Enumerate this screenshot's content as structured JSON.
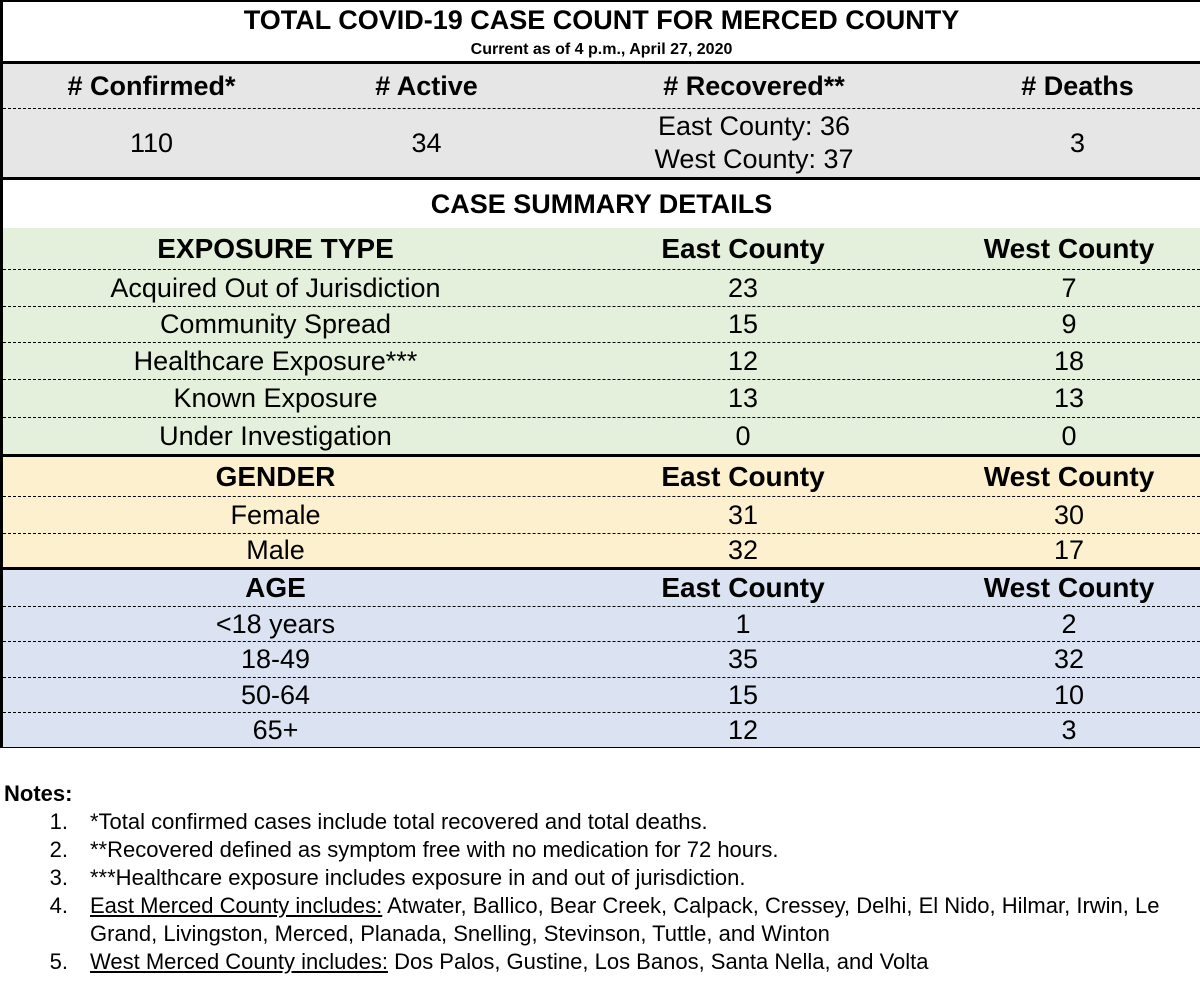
{
  "header": {
    "title": "TOTAL COVID-19 CASE COUNT FOR MERCED COUNTY",
    "subtitle": "Current as of 4 p.m., April 27, 2020"
  },
  "totals": {
    "labels": [
      "# Confirmed*",
      "# Active",
      "# Recovered**",
      "# Deaths"
    ],
    "confirmed": "110",
    "active": "34",
    "recovered_east": "East County: 36",
    "recovered_west": "West County: 37",
    "deaths": "3"
  },
  "summary_title": "CASE SUMMARY DETAILS",
  "sections": {
    "exposure": {
      "header": [
        "EXPOSURE TYPE",
        "East County",
        "West County"
      ],
      "rows": [
        [
          "Acquired Out of Jurisdiction",
          "23",
          "7"
        ],
        [
          "Community Spread",
          "15",
          "9"
        ],
        [
          "Healthcare Exposure***",
          "12",
          "18"
        ],
        [
          "Known Exposure",
          "13",
          "13"
        ],
        [
          "Under Investigation",
          "0",
          "0"
        ]
      ],
      "color": "#e4efdc"
    },
    "gender": {
      "header": [
        "GENDER",
        "East County",
        "West County"
      ],
      "rows": [
        [
          "Female",
          "31",
          "30"
        ],
        [
          "Male",
          "32",
          "17"
        ]
      ],
      "color": "#fdf0ce"
    },
    "age": {
      "header": [
        "AGE",
        "East County",
        "West County"
      ],
      "rows": [
        [
          "<18 years",
          "1",
          "2"
        ],
        [
          "18-49",
          "35",
          "32"
        ],
        [
          "50-64",
          "15",
          "10"
        ],
        [
          "65+",
          "12",
          "3"
        ]
      ],
      "color": "#dbe2f2"
    }
  },
  "notes": {
    "title": "Notes:",
    "items": [
      {
        "num": "1.",
        "text": "*Total confirmed cases include total recovered and total deaths."
      },
      {
        "num": "2.",
        "text": "**Recovered defined as symptom free with no medication for 72 hours."
      },
      {
        "num": "3.",
        "text": "***Healthcare exposure includes exposure in and out of jurisdiction."
      },
      {
        "num": "4.",
        "underlined": "East Merced County includes:",
        "text": " Atwater, Ballico, Bear Creek, Calpack, Cressey, Delhi, El Nido, Hilmar, Irwin, Le Grand, Livingston, Merced, Planada, Snelling, Stevinson, Tuttle, and Winton"
      },
      {
        "num": "5.",
        "underlined": "West Merced County includes:",
        "text": " Dos Palos, Gustine, Los Banos, Santa Nella, and Volta"
      }
    ]
  }
}
